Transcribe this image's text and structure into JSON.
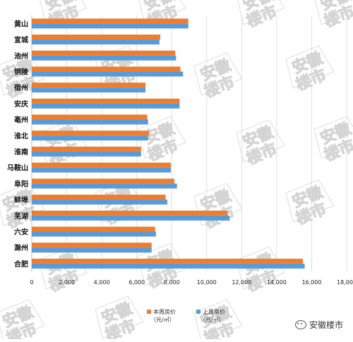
{
  "chart_data": {
    "type": "bar",
    "orientation": "horizontal",
    "categories": [
      "黄山",
      "宣城",
      "池州",
      "铜陵",
      "宿州",
      "安庆",
      "亳州",
      "淮北",
      "淮南",
      "马鞍山",
      "阜阳",
      "蚌埠",
      "芜湖",
      "六安",
      "滁州",
      "合肥"
    ],
    "series": [
      {
        "name": "本周房价（元/㎡）",
        "color": "#ed7d31",
        "values": [
          8950,
          7350,
          8200,
          8500,
          6500,
          8450,
          6600,
          6700,
          6250,
          7950,
          8150,
          7650,
          11200,
          7050,
          6850,
          15500
        ]
      },
      {
        "name": "上周房价（元/㎡）",
        "color": "#5b9bd5",
        "values": [
          8950,
          7300,
          8250,
          8650,
          6500,
          8450,
          6650,
          6650,
          6250,
          7950,
          8300,
          7750,
          11300,
          7100,
          6850,
          15600
        ]
      }
    ],
    "xlim": [
      0,
      18000
    ],
    "xticks": [
      "0",
      "2,000",
      "4,000",
      "6,000",
      "8,000",
      "10,000",
      "12,000",
      "14,000",
      "16,000",
      "18,000"
    ],
    "grid": true,
    "legend_position": "bottom"
  },
  "legend": {
    "current_l1": "本周房价",
    "current_l2": "（元/㎡）",
    "previous_l1": "上周房价",
    "previous_l2": "（元/㎡）"
  },
  "watermark": {
    "line1": "安徽",
    "line2": "楼市"
  },
  "brand": {
    "label": "安徽楼市",
    "icon": "wechat-icon"
  }
}
